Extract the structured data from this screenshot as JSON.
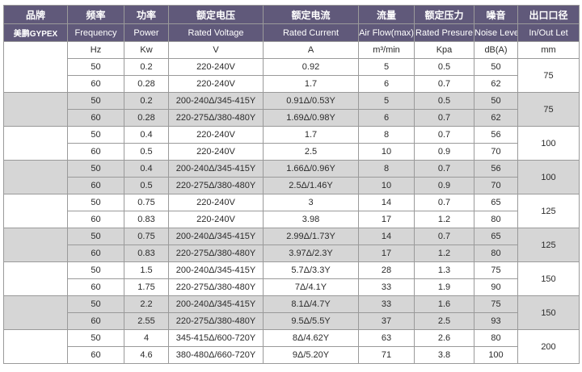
{
  "header": {
    "brand_zh": "品牌",
    "brand_en": "美鹏GYPEX",
    "freq_zh": "频率",
    "freq_en": "Frequency",
    "power_zh": "功率",
    "power_en": "Power",
    "voltage_zh": "额定电压",
    "voltage_en": "Rated Voltage",
    "current_zh": "额定电流",
    "current_en": "Rated Current",
    "airflow_zh": "流量",
    "airflow_en": "Air Flow(max)",
    "pressure_zh": "额定压力",
    "pressure_en": "Rated Presure",
    "noise_zh": "噪音",
    "noise_en": "Noise Level",
    "outlet_zh": "出口口径",
    "outlet_en": "In/Out Let"
  },
  "units": {
    "freq": "Hz",
    "power": "Kw",
    "voltage": "V",
    "current": "A",
    "airflow": "m³/min",
    "pressure": "Kpa",
    "noise": "dB(A)",
    "outlet": "mm"
  },
  "groups": [
    {
      "outlet": "75",
      "rows": [
        {
          "hz": "50",
          "kw": "0.2",
          "v": "220-240V",
          "a": "0.92",
          "flow": "5",
          "kpa": "0.5",
          "db": "50"
        },
        {
          "hz": "60",
          "kw": "0.28",
          "v": "220-240V",
          "a": "1.7",
          "flow": "6",
          "kpa": "0.7",
          "db": "62"
        }
      ]
    },
    {
      "outlet": "75",
      "rows": [
        {
          "hz": "50",
          "kw": "0.2",
          "v": "200-240Δ/345-415Y",
          "a": "0.91Δ/0.53Y",
          "flow": "5",
          "kpa": "0.5",
          "db": "50"
        },
        {
          "hz": "60",
          "kw": "0.28",
          "v": "220-275Δ/380-480Y",
          "a": "1.69Δ/0.98Y",
          "flow": "6",
          "kpa": "0.7",
          "db": "62"
        }
      ]
    },
    {
      "outlet": "100",
      "rows": [
        {
          "hz": "50",
          "kw": "0.4",
          "v": "220-240V",
          "a": "1.7",
          "flow": "8",
          "kpa": "0.7",
          "db": "56"
        },
        {
          "hz": "60",
          "kw": "0.5",
          "v": "220-240V",
          "a": "2.5",
          "flow": "10",
          "kpa": "0.9",
          "db": "70"
        }
      ]
    },
    {
      "outlet": "100",
      "rows": [
        {
          "hz": "50",
          "kw": "0.4",
          "v": "200-240Δ/345-415Y",
          "a": "1.66Δ/0.96Y",
          "flow": "8",
          "kpa": "0.7",
          "db": "56"
        },
        {
          "hz": "60",
          "kw": "0.5",
          "v": "220-275Δ/380-480Y",
          "a": "2.5Δ/1.46Y",
          "flow": "10",
          "kpa": "0.9",
          "db": "70"
        }
      ]
    },
    {
      "outlet": "125",
      "rows": [
        {
          "hz": "50",
          "kw": "0.75",
          "v": "220-240V",
          "a": "3",
          "flow": "14",
          "kpa": "0.7",
          "db": "65"
        },
        {
          "hz": "60",
          "kw": "0.83",
          "v": "220-240V",
          "a": "3.98",
          "flow": "17",
          "kpa": "1.2",
          "db": "80"
        }
      ]
    },
    {
      "outlet": "125",
      "rows": [
        {
          "hz": "50",
          "kw": "0.75",
          "v": "200-240Δ/345-415Y",
          "a": "2.99Δ/1.73Y",
          "flow": "14",
          "kpa": "0.7",
          "db": "65"
        },
        {
          "hz": "60",
          "kw": "0.83",
          "v": "220-275Δ/380-480Y",
          "a": "3.97Δ/2.3Y",
          "flow": "17",
          "kpa": "1.2",
          "db": "80"
        }
      ]
    },
    {
      "outlet": "150",
      "rows": [
        {
          "hz": "50",
          "kw": "1.5",
          "v": "200-240Δ/345-415Y",
          "a": "5.7Δ/3.3Y",
          "flow": "28",
          "kpa": "1.3",
          "db": "75"
        },
        {
          "hz": "60",
          "kw": "1.75",
          "v": "220-275Δ/380-480Y",
          "a": "7Δ/4.1Y",
          "flow": "33",
          "kpa": "1.9",
          "db": "90"
        }
      ]
    },
    {
      "outlet": "150",
      "rows": [
        {
          "hz": "50",
          "kw": "2.2",
          "v": "200-240Δ/345-415Y",
          "a": "8.1Δ/4.7Y",
          "flow": "33",
          "kpa": "1.6",
          "db": "75"
        },
        {
          "hz": "60",
          "kw": "2.55",
          "v": "220-275Δ/380-480Y",
          "a": "9.5Δ/5.5Y",
          "flow": "37",
          "kpa": "2.5",
          "db": "93"
        }
      ]
    },
    {
      "outlet": "200",
      "rows": [
        {
          "hz": "50",
          "kw": "4",
          "v": "345-415Δ/600-720Y",
          "a": "8Δ/4.62Y",
          "flow": "63",
          "kpa": "2.6",
          "db": "80"
        },
        {
          "hz": "60",
          "kw": "4.6",
          "v": "380-480Δ/660-720Y",
          "a": "9Δ/5.20Y",
          "flow": "71",
          "kpa": "3.8",
          "db": "100"
        }
      ]
    }
  ]
}
